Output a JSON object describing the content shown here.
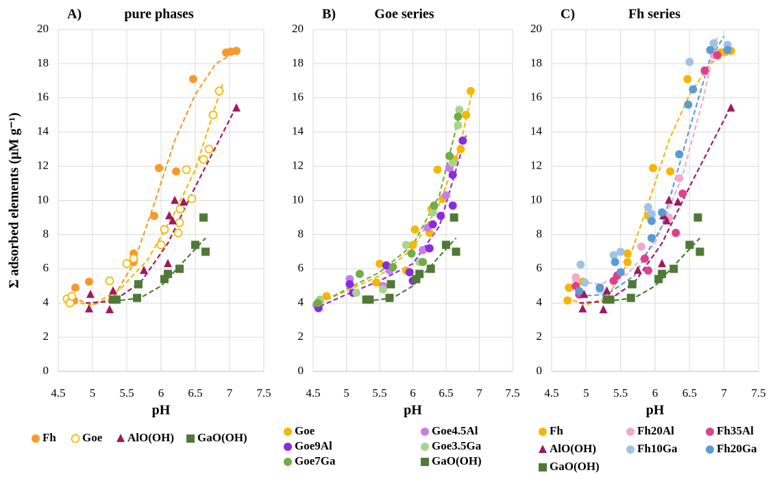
{
  "chart_data": [
    {
      "type": "scatter",
      "label": "A)",
      "title": "pure phases",
      "xlabel": "pH",
      "ylabel": "Σ adsorbed elements (μM g⁻¹)",
      "xlim": [
        4.5,
        7.5
      ],
      "xticks": [
        4.5,
        5,
        5.5,
        6,
        6.5,
        7,
        7.5
      ],
      "ylim": [
        0,
        20
      ],
      "yticks": [
        0,
        2,
        4,
        6,
        8,
        10,
        12,
        14,
        16,
        18,
        20
      ],
      "grid": true,
      "series": [
        {
          "name": "Fh",
          "color": "#f79a2a",
          "marker": "circle",
          "x": [
            4.73,
            4.75,
            4.95,
            5.6,
            5.6,
            5.9,
            5.97,
            6.22,
            6.47,
            6.95,
            7.02,
            7.1
          ],
          "values": [
            4.15,
            4.9,
            5.25,
            6.9,
            6.4,
            9.1,
            11.9,
            11.7,
            17.1,
            18.65,
            18.7,
            18.75
          ],
          "trend": {
            "x": [
              4.7,
              5,
              5.3,
              5.6,
              5.9,
              6.2,
              6.5,
              6.8,
              7.1
            ],
            "values": [
              4.3,
              3.9,
              4.3,
              6.3,
              9.8,
              13.5,
              16.2,
              18,
              18.7
            ]
          }
        },
        {
          "name": "Goe",
          "color": "#f5b800",
          "marker": "open-circle",
          "x": [
            4.63,
            4.67,
            4.7,
            5.25,
            5.5,
            5.6,
            6.0,
            6.05,
            6.25,
            6.27,
            6.28,
            6.37,
            6.45,
            6.62,
            6.7,
            6.76,
            6.85
          ],
          "values": [
            4.25,
            4.0,
            4.4,
            5.3,
            6.3,
            6.6,
            7.4,
            8.3,
            8.1,
            8.7,
            9.5,
            11.8,
            10.1,
            12.4,
            13.0,
            15.0,
            16.4
          ],
          "trend": {
            "x": [
              4.6,
              5,
              5.4,
              5.8,
              6.2,
              6.5,
              6.8,
              6.9
            ],
            "values": [
              4.1,
              3.9,
              4.8,
              6.5,
              9.3,
              11.8,
              15.6,
              16.8
            ]
          }
        },
        {
          "name": "AlO(OH)",
          "color": "#a0185e",
          "marker": "triangle",
          "x": [
            4.95,
            4.97,
            5.25,
            5.3,
            5.75,
            6.1,
            6.12,
            6.17,
            6.2,
            6.33,
            7.1
          ],
          "values": [
            3.65,
            4.5,
            3.6,
            4.7,
            5.9,
            6.3,
            9.1,
            8.8,
            10.0,
            9.9,
            15.4
          ],
          "trend": {
            "x": [
              4.9,
              5.3,
              5.7,
              6.1,
              6.5,
              7.1
            ],
            "values": [
              4.0,
              4.1,
              5.2,
              7.5,
              10.8,
              15.5
            ]
          }
        },
        {
          "name": "GaO(OH)",
          "color": "#4e7a36",
          "marker": "square",
          "x": [
            5.3,
            5.35,
            5.65,
            5.67,
            6.05,
            6.1,
            6.27,
            6.5,
            6.62,
            6.65
          ],
          "values": [
            4.2,
            4.2,
            4.3,
            5.1,
            5.4,
            5.7,
            6.0,
            7.4,
            9.0,
            7.0
          ],
          "trend": {
            "x": [
              5.3,
              5.7,
              6.0,
              6.3,
              6.65
            ],
            "values": [
              4.1,
              4.3,
              5.0,
              6.3,
              7.8
            ]
          }
        }
      ]
    },
    {
      "type": "scatter",
      "label": "B)",
      "title": "Goe series",
      "xlabel": "pH",
      "xlim": [
        4.5,
        7.5
      ],
      "xticks": [
        4.5,
        5,
        5.5,
        6,
        6.5,
        7,
        7.5
      ],
      "ylim": [
        0,
        20
      ],
      "yticks": [
        0,
        2,
        4,
        6,
        8,
        10,
        12,
        14,
        16,
        18,
        20
      ],
      "grid": true,
      "series": [
        {
          "name": "Goe",
          "color": "#f5b800",
          "marker": "circle",
          "x": [
            4.6,
            4.7,
            5.45,
            5.5,
            5.9,
            6.0,
            6.03,
            6.25,
            6.28,
            6.37,
            6.45,
            6.62,
            6.72,
            6.8,
            6.87
          ],
          "values": [
            4.1,
            4.4,
            5.2,
            6.3,
            5.9,
            7.4,
            8.3,
            8.1,
            9.5,
            11.8,
            10.1,
            12.4,
            13.0,
            15.0,
            16.4
          ],
          "trend": {
            "x": [
              4.6,
              5,
              5.5,
              6,
              6.4,
              6.7,
              6.9
            ],
            "values": [
              4.0,
              4.7,
              5.6,
              7.2,
              9.8,
              13.0,
              16.5
            ]
          }
        },
        {
          "name": "Goe4.5Al",
          "color": "#c77ee8",
          "marker": "circle",
          "x": [
            4.55,
            5.05,
            5.55,
            5.65,
            6.15,
            6.22,
            6.5,
            6.55
          ],
          "values": [
            3.9,
            5.4,
            5.0,
            5.9,
            7.1,
            8.4,
            10.3,
            11.9
          ]
        },
        {
          "name": "Goe9Al",
          "color": "#8a2be2",
          "marker": "circle",
          "x": [
            4.58,
            5.05,
            5.1,
            5.6,
            5.95,
            6.0,
            6.25,
            6.3,
            6.42,
            6.6,
            6.6,
            6.75
          ],
          "values": [
            3.7,
            5.1,
            4.6,
            6.2,
            5.8,
            5.3,
            7.2,
            8.6,
            9.1,
            9.7,
            11.5,
            13.5
          ],
          "trend": {
            "x": [
              4.6,
              5,
              5.5,
              6,
              6.4,
              6.8
            ],
            "values": [
              3.8,
              4.5,
              5.3,
              6.3,
              8.5,
              13.8
            ]
          }
        },
        {
          "name": "Goe3.5Ga",
          "color": "#a9d48c",
          "marker": "circle",
          "x": [
            4.6,
            5.15,
            5.55,
            5.9,
            6.1,
            6.3,
            6.6,
            6.68,
            6.7
          ],
          "values": [
            4.2,
            4.6,
            4.8,
            7.4,
            6.4,
            9.3,
            12.2,
            14.4,
            15.3
          ]
        },
        {
          "name": "Goe7Ga",
          "color": "#70ad47",
          "marker": "circle",
          "x": [
            4.57,
            5.2,
            5.7,
            5.98,
            6.15,
            6.32,
            6.55,
            6.68
          ],
          "values": [
            4.0,
            5.7,
            6.1,
            6.9,
            6.4,
            9.7,
            12.6,
            14.9
          ],
          "trend": {
            "x": [
              4.6,
              5,
              5.5,
              6,
              6.4,
              6.7
            ],
            "values": [
              4.0,
              4.8,
              5.8,
              7.4,
              10.3,
              15.0
            ]
          }
        },
        {
          "name": "GaO(OH)",
          "color": "#4e7a36",
          "marker": "square",
          "x": [
            5.3,
            5.35,
            5.65,
            5.67,
            6.05,
            6.1,
            6.27,
            6.5,
            6.62,
            6.65
          ],
          "values": [
            4.2,
            4.2,
            4.3,
            5.1,
            5.4,
            5.7,
            6.0,
            7.4,
            9.0,
            7.0
          ],
          "trend": {
            "x": [
              5.3,
              5.7,
              6.0,
              6.3,
              6.65
            ],
            "values": [
              4.1,
              4.3,
              5.0,
              6.3,
              7.8
            ]
          }
        }
      ]
    },
    {
      "type": "scatter",
      "label": "C)",
      "title": "Fh series",
      "xlabel": "pH",
      "xlim": [
        4.5,
        7.5
      ],
      "xticks": [
        4.5,
        5,
        5.5,
        6,
        6.5,
        7,
        7.5
      ],
      "ylim": [
        0,
        20
      ],
      "yticks": [
        0,
        2,
        4,
        6,
        8,
        10,
        12,
        14,
        16,
        18,
        20
      ],
      "grid": true,
      "series": [
        {
          "name": "Fh",
          "color": "#f7b500",
          "marker": "circle",
          "x": [
            4.73,
            4.75,
            4.95,
            5.6,
            5.6,
            5.9,
            5.97,
            6.22,
            6.47,
            6.95,
            7.02,
            7.1
          ],
          "values": [
            4.15,
            4.9,
            5.25,
            6.9,
            6.4,
            9.1,
            11.9,
            11.7,
            17.1,
            18.65,
            18.7,
            18.75
          ],
          "trend": {
            "x": [
              4.7,
              5,
              5.3,
              5.6,
              5.9,
              6.2,
              6.5,
              6.8,
              7.1
            ],
            "values": [
              4.3,
              3.9,
              4.3,
              6.3,
              9.8,
              13.5,
              16.2,
              18,
              18.7
            ]
          }
        },
        {
          "name": "Fh20Al",
          "color": "#f2a9cb",
          "marker": "circle",
          "x": [
            4.85,
            5.2,
            5.5,
            5.8,
            6.2,
            6.35,
            6.72,
            6.85
          ],
          "values": [
            5.5,
            4.9,
            5.8,
            7.3,
            9.0,
            11.3,
            17.5,
            18.5
          ],
          "trend": {
            "x": [
              4.8,
              5.2,
              5.6,
              6,
              6.4,
              6.7,
              6.9
            ],
            "values": [
              5.3,
              5.1,
              5.7,
              7.5,
              11.5,
              16.0,
              19.6
            ]
          }
        },
        {
          "name": "Fh35Al",
          "color": "#e0408a",
          "marker": "circle",
          "x": [
            4.85,
            4.9,
            5.4,
            5.45,
            5.85,
            5.9,
            6.3,
            6.4,
            6.72,
            6.9
          ],
          "values": [
            5.0,
            4.5,
            5.3,
            5.6,
            6.6,
            5.9,
            8.1,
            10.4,
            17.6,
            18.5
          ]
        },
        {
          "name": "AlO(OH)",
          "color": "#a0185e",
          "marker": "triangle",
          "x": [
            4.95,
            4.97,
            5.25,
            5.3,
            5.75,
            6.1,
            6.12,
            6.17,
            6.2,
            6.33,
            7.1
          ],
          "values": [
            3.65,
            4.5,
            3.6,
            4.7,
            5.9,
            6.3,
            9.1,
            8.8,
            10.0,
            9.9,
            15.4
          ],
          "trend": {
            "x": [
              4.9,
              5.3,
              5.7,
              6.1,
              6.5,
              7.1
            ],
            "values": [
              4.0,
              4.1,
              5.2,
              7.5,
              10.8,
              15.5
            ]
          }
        },
        {
          "name": "Fh10Ga",
          "color": "#9dc3e6",
          "marker": "circle",
          "x": [
            4.92,
            4.98,
            5.2,
            5.4,
            5.5,
            5.9,
            5.95,
            6.5,
            6.85,
            7.05
          ],
          "values": [
            6.25,
            5.2,
            4.8,
            6.8,
            7.0,
            9.6,
            9.2,
            18.1,
            19.2,
            19.1
          ]
        },
        {
          "name": "Fh20Ga",
          "color": "#5b9bd5",
          "marker": "circle",
          "x": [
            4.9,
            5.2,
            5.42,
            5.5,
            5.95,
            5.95,
            6.1,
            6.35,
            6.48,
            6.55,
            6.8,
            7.05
          ],
          "values": [
            4.7,
            4.9,
            6.4,
            5.8,
            7.8,
            8.8,
            9.3,
            12.7,
            15.6,
            16.5,
            18.8,
            18.8
          ],
          "trend": {
            "x": [
              4.9,
              5.3,
              5.7,
              6.1,
              6.5,
              6.8,
              7.0
            ],
            "values": [
              4.4,
              4.5,
              5.6,
              8.5,
              14.2,
              18.3,
              19.6
            ]
          }
        },
        {
          "name": "GaO(OH)",
          "color": "#4e7a36",
          "marker": "square",
          "x": [
            5.3,
            5.35,
            5.65,
            5.67,
            6.05,
            6.1,
            6.27,
            6.5,
            6.62,
            6.65
          ],
          "values": [
            4.2,
            4.2,
            4.3,
            5.1,
            5.4,
            5.7,
            6.0,
            7.4,
            9.0,
            7.0
          ],
          "trend": {
            "x": [
              5.3,
              5.7,
              6.0,
              6.3,
              6.65
            ],
            "values": [
              4.1,
              4.3,
              5.0,
              6.3,
              7.8
            ]
          }
        }
      ]
    }
  ]
}
